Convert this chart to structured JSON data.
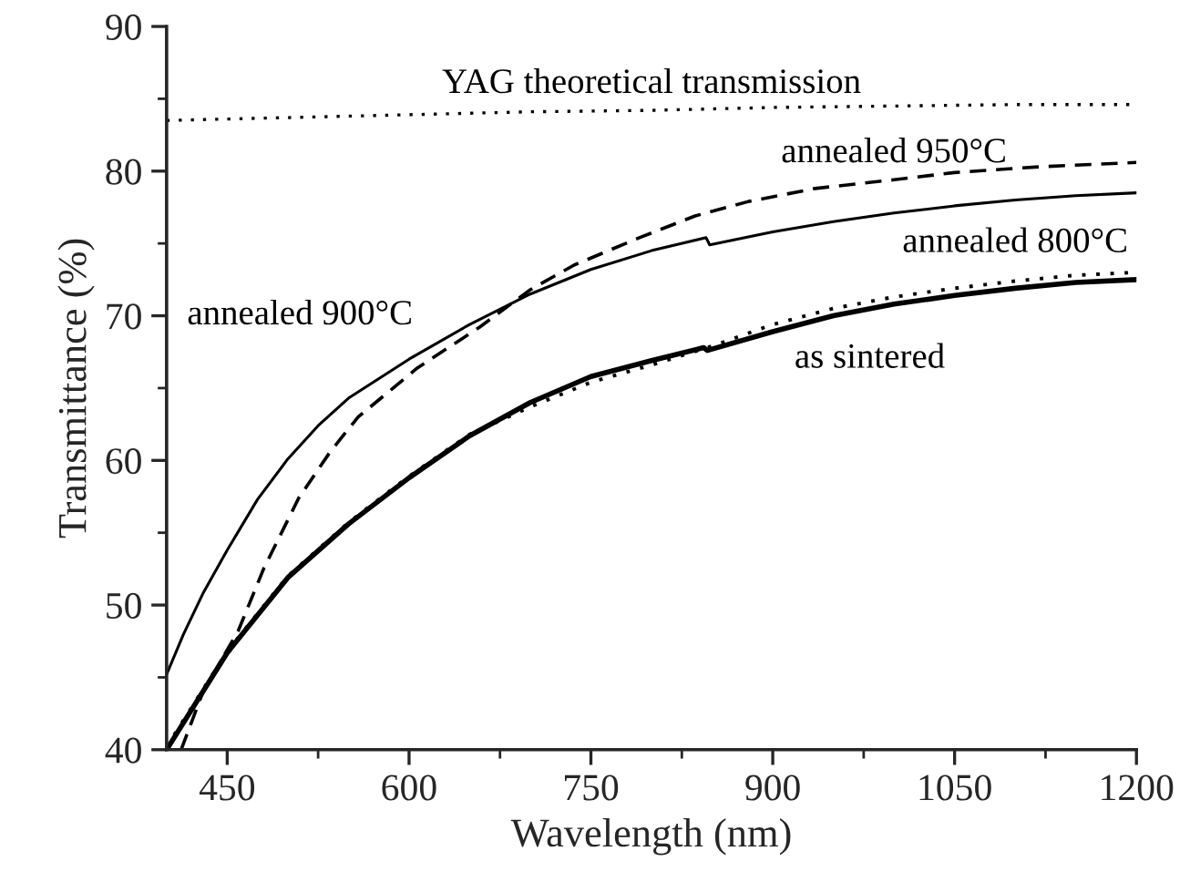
{
  "chart_data": {
    "type": "line",
    "xlabel": "Wavelength (nm)",
    "ylabel": "Transmittance (%)",
    "xlim": [
      400,
      1200
    ],
    "ylim": [
      40,
      90
    ],
    "xticks": [
      450,
      {
        "value": 525,
        "label": null
      },
      600,
      {
        "value": 675,
        "label": null
      },
      750,
      {
        "value": 825,
        "label": null
      },
      900,
      {
        "value": 975,
        "label": null
      },
      1050,
      {
        "value": 1125,
        "label": null
      },
      1200
    ],
    "yticks": [
      40,
      {
        "value": 45,
        "label": null
      },
      50,
      {
        "value": 55,
        "label": null
      },
      60,
      {
        "value": 65,
        "label": null
      },
      70,
      {
        "value": 75,
        "label": null
      },
      80,
      {
        "value": 85,
        "label": null
      },
      90
    ],
    "grid": false,
    "legend": false,
    "marker": "none",
    "series": [
      {
        "name": "YAG theoretical transmission",
        "color": "#000000",
        "line_style": "dotted",
        "x": [
          400,
          500,
          600,
          700,
          800,
          900,
          1000,
          1100,
          1200
        ],
        "values": [
          83.5,
          83.7,
          83.9,
          84.1,
          84.2,
          84.4,
          84.5,
          84.6,
          84.6
        ]
      },
      {
        "name": "annealed 950°C",
        "color": "#000000",
        "line_style": "dashed",
        "x": [
          412,
          430,
          459,
          480,
          509,
          535,
          558,
          607,
          658,
          700,
          736,
          790,
          836,
          880,
          935,
          1000,
          1050,
          1120,
          1200
        ],
        "values": [
          40,
          44,
          48.2,
          52.5,
          57.4,
          60.6,
          63,
          66.4,
          69.2,
          71.8,
          73.5,
          75.4,
          76.9,
          77.9,
          78.8,
          79.4,
          79.9,
          80.3,
          80.6
        ]
      },
      {
        "name": "annealed 900°C",
        "color": "#000000",
        "line_style": "solid",
        "x": [
          400,
          414,
          430,
          450,
          475,
          500,
          525,
          550,
          600,
          650,
          700,
          750,
          800,
          845,
          848,
          900,
          950,
          1000,
          1050,
          1100,
          1150,
          1200
        ],
        "values": [
          45.2,
          48,
          50.8,
          53.8,
          57.3,
          60.1,
          62.4,
          64.3,
          67,
          69.4,
          71.5,
          73.2,
          74.5,
          75.4,
          74.9,
          75.8,
          76.5,
          77.1,
          77.6,
          78,
          78.3,
          78.5
        ]
      },
      {
        "name": "as sintered",
        "color": "#000000",
        "line_style": "solid",
        "x": [
          400,
          450,
          500,
          550,
          600,
          650,
          700,
          750,
          800,
          843,
          846,
          900,
          950,
          1000,
          1050,
          1100,
          1150,
          1200
        ],
        "values": [
          40,
          46.7,
          51.9,
          55.6,
          58.8,
          61.7,
          64,
          65.8,
          66.9,
          67.8,
          67.6,
          68.9,
          70,
          70.8,
          71.4,
          71.9,
          72.3,
          72.5
        ]
      },
      {
        "name": "annealed 800°C",
        "color": "#000000",
        "line_style": "dotted",
        "x": [
          400,
          450,
          500,
          550,
          600,
          650,
          700,
          750,
          800,
          850,
          900,
          950,
          1000,
          1050,
          1100,
          1150,
          1200
        ],
        "values": [
          40.2,
          46.8,
          52,
          55.7,
          58.9,
          61.8,
          63.7,
          65.4,
          66.6,
          67.9,
          69.4,
          70.5,
          71.3,
          71.9,
          72.4,
          72.8,
          73
        ]
      }
    ]
  }
}
